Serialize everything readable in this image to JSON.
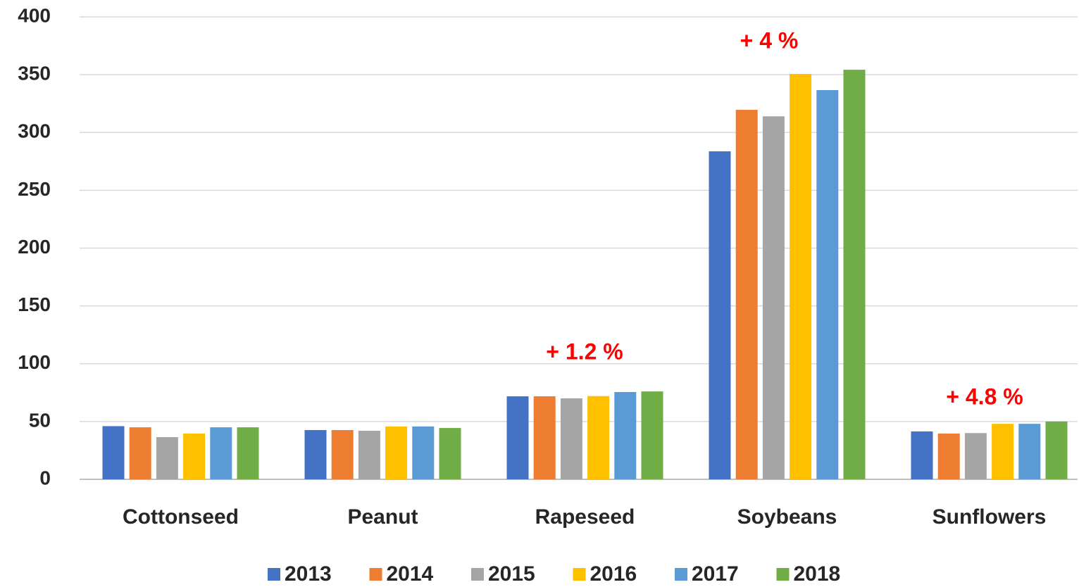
{
  "chart_data": {
    "type": "bar",
    "categories": [
      "Cottonseed",
      "Peanut",
      "Rapeseed",
      "Soybeans",
      "Sunflowers"
    ],
    "series": [
      {
        "name": "2013",
        "color": "#4472c4",
        "values": [
          46,
          42.6,
          71.8,
          283.7,
          41.4
        ]
      },
      {
        "name": "2014",
        "color": "#ed7d31",
        "values": [
          45,
          42.6,
          71.8,
          319.6,
          39.6
        ]
      },
      {
        "name": "2015",
        "color": "#a5a5a5",
        "values": [
          36.5,
          42,
          70,
          314,
          40
        ]
      },
      {
        "name": "2016",
        "color": "#ffc000",
        "values": [
          39.6,
          45.7,
          72,
          350.7,
          48
        ]
      },
      {
        "name": "2017",
        "color": "#5b9bd5",
        "values": [
          45,
          45.7,
          75.5,
          336.7,
          48
        ]
      },
      {
        "name": "2018",
        "color": "#70ad47",
        "values": [
          45,
          44.4,
          76,
          354.3,
          50
        ]
      }
    ],
    "annotations": [
      "+ 1.2 %",
      "+ 4 %",
      "+ 4.8 %"
    ],
    "ylim": [
      0,
      400
    ],
    "yticks": [
      0,
      50,
      100,
      150,
      200,
      250,
      300,
      350,
      400
    ],
    "grid": true,
    "legend": "bottom"
  }
}
